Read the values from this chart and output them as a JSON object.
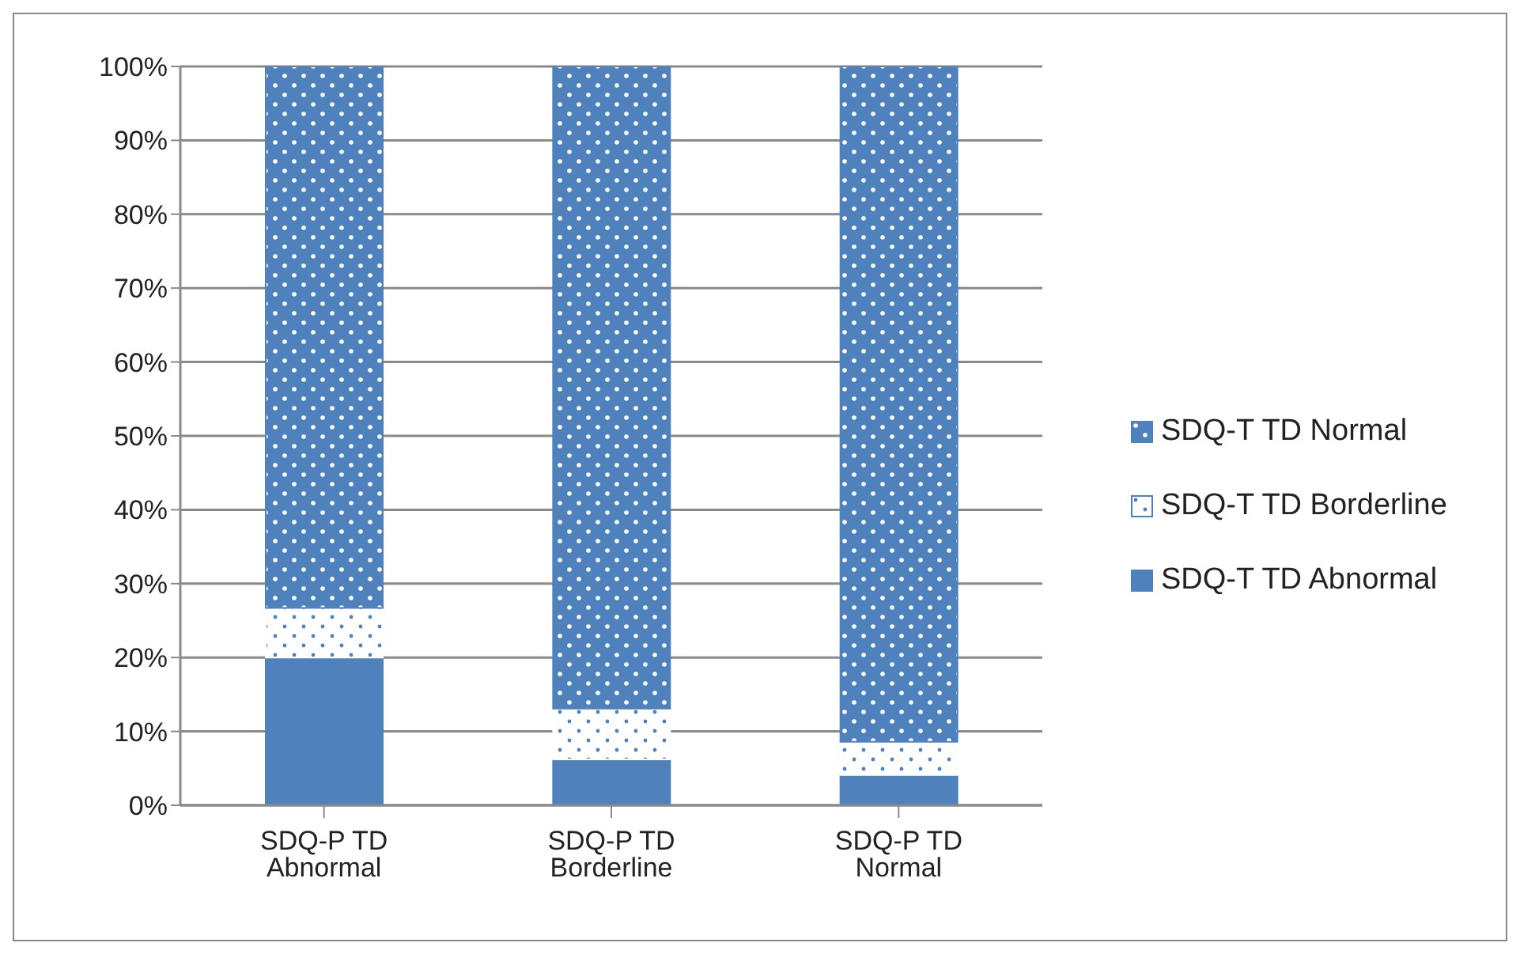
{
  "chart_data": {
    "type": "bar",
    "stacked": true,
    "categories": [
      "SDQ-P TD Abnormal",
      "SDQ-P TD Borderline",
      "SDQ-P TD Normal"
    ],
    "series": [
      {
        "name": "SDQ-T TD Abnormal",
        "color": "#4f81bd",
        "values": [
          20,
          6.2,
          4.1
        ]
      },
      {
        "name": "SDQ-T TD Borderline",
        "color": "#ffffff",
        "values": [
          6.7,
          6.9,
          4.5
        ]
      },
      {
        "name": "SDQ-T TD Normal",
        "color": "#4f81bd",
        "values": [
          73.3,
          86.9,
          91.4
        ]
      }
    ],
    "ylim": [
      0,
      100
    ],
    "yticks": [
      {
        "value": 0,
        "label": "0%"
      },
      {
        "value": 10,
        "label": "10%"
      },
      {
        "value": 20,
        "label": "20%"
      },
      {
        "value": 30,
        "label": "30%"
      },
      {
        "value": 40,
        "label": "40%"
      },
      {
        "value": 50,
        "label": "50%"
      },
      {
        "value": 60,
        "label": "60%"
      },
      {
        "value": 70,
        "label": "70%"
      },
      {
        "value": 80,
        "label": "80%"
      },
      {
        "value": 90,
        "label": "90%"
      },
      {
        "value": 100,
        "label": "100%"
      }
    ],
    "grid": "y",
    "legend": "right"
  }
}
